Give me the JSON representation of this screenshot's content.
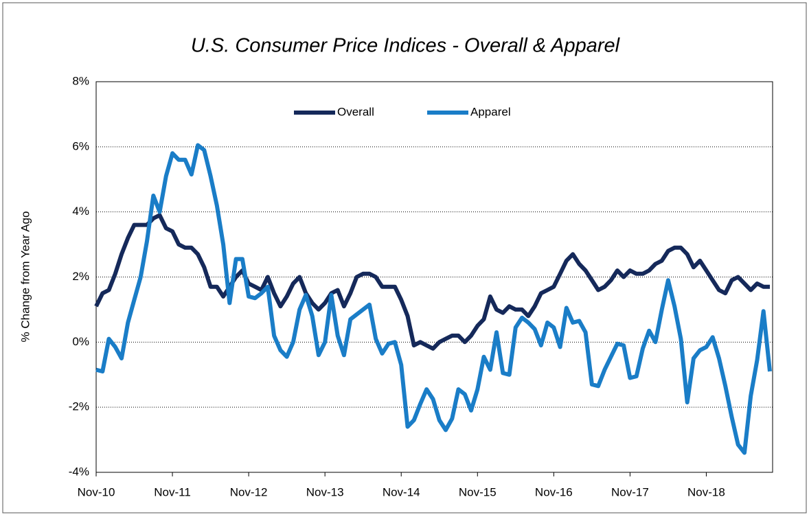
{
  "chart_data": {
    "type": "line",
    "title": "U.S. Consumer Price Indices - Overall & Apparel",
    "y_label": "% Change from Year Ago",
    "categories": [
      "Nov-10",
      null,
      null,
      null,
      null,
      null,
      null,
      null,
      null,
      null,
      null,
      null,
      "Nov-11",
      null,
      null,
      null,
      null,
      null,
      null,
      null,
      null,
      null,
      null,
      null,
      "Nov-12",
      null,
      null,
      null,
      null,
      null,
      null,
      null,
      null,
      null,
      null,
      null,
      "Nov-13",
      null,
      null,
      null,
      null,
      null,
      null,
      null,
      null,
      null,
      null,
      null,
      "Nov-14",
      null,
      null,
      null,
      null,
      null,
      null,
      null,
      null,
      null,
      null,
      null,
      "Nov-15",
      null,
      null,
      null,
      null,
      null,
      null,
      null,
      null,
      null,
      null,
      null,
      "Nov-16",
      null,
      null,
      null,
      null,
      null,
      null,
      null,
      null,
      null,
      null,
      null,
      "Nov-17",
      null,
      null,
      null,
      null,
      null,
      null,
      null,
      null,
      null,
      null,
      null,
      "Nov-18",
      null,
      null,
      null,
      null,
      null,
      null,
      null,
      null,
      null,
      null
    ],
    "series": [
      {
        "name": "Overall",
        "color": "#15295a",
        "values": [
          1.1,
          1.5,
          1.6,
          2.1,
          2.7,
          3.2,
          3.6,
          3.6,
          3.6,
          3.8,
          3.9,
          3.5,
          3.4,
          3.0,
          2.9,
          2.9,
          2.7,
          2.3,
          1.7,
          1.7,
          1.4,
          1.7,
          2.0,
          2.2,
          1.8,
          1.7,
          1.6,
          2.0,
          1.5,
          1.1,
          1.4,
          1.8,
          2.0,
          1.5,
          1.2,
          1.0,
          1.2,
          1.5,
          1.6,
          1.1,
          1.5,
          2.0,
          2.1,
          2.1,
          2.0,
          1.7,
          1.7,
          1.7,
          1.3,
          0.8,
          -0.1,
          0.0,
          -0.1,
          -0.2,
          0.0,
          0.1,
          0.2,
          0.2,
          0.0,
          0.2,
          0.5,
          0.7,
          1.4,
          1.0,
          0.9,
          1.1,
          1.0,
          1.0,
          0.8,
          1.1,
          1.5,
          1.6,
          1.7,
          2.1,
          2.5,
          2.7,
          2.4,
          2.2,
          1.9,
          1.6,
          1.7,
          1.9,
          2.2,
          2.0,
          2.2,
          2.1,
          2.1,
          2.2,
          2.4,
          2.5,
          2.8,
          2.9,
          2.9,
          2.7,
          2.3,
          2.5,
          2.2,
          1.9,
          1.6,
          1.5,
          1.9,
          2.0,
          1.8,
          1.6,
          1.8,
          1.7,
          1.7
        ]
      },
      {
        "name": "Apparel",
        "color": "#1a7dc7",
        "values": [
          -0.85,
          -0.9,
          0.1,
          -0.15,
          -0.5,
          0.6,
          1.3,
          2.0,
          3.1,
          4.5,
          4.0,
          5.1,
          5.8,
          5.6,
          5.6,
          5.15,
          6.05,
          5.9,
          5.1,
          4.2,
          3.0,
          1.2,
          2.55,
          2.55,
          1.4,
          1.35,
          1.5,
          1.7,
          0.2,
          -0.25,
          -0.45,
          0.0,
          1.0,
          1.45,
          0.8,
          -0.4,
          0.0,
          1.45,
          0.2,
          -0.4,
          0.7,
          0.85,
          1.0,
          1.15,
          0.1,
          -0.35,
          -0.05,
          0.0,
          -0.7,
          -2.6,
          -2.4,
          -1.9,
          -1.45,
          -1.75,
          -2.4,
          -2.7,
          -2.35,
          -1.45,
          -1.6,
          -2.1,
          -1.45,
          -0.45,
          -0.85,
          0.3,
          -0.95,
          -1.0,
          0.45,
          0.75,
          0.6,
          0.4,
          -0.1,
          0.6,
          0.45,
          -0.15,
          1.05,
          0.6,
          0.65,
          0.3,
          -1.3,
          -1.35,
          -0.85,
          -0.45,
          -0.05,
          -0.1,
          -1.1,
          -1.05,
          -0.2,
          0.35,
          0.0,
          1.0,
          1.9,
          1.1,
          0.1,
          -1.85,
          -0.5,
          -0.25,
          -0.15,
          0.15,
          -0.5,
          -1.35,
          -2.3,
          -3.15,
          -3.4,
          -1.65,
          -0.55,
          0.95,
          -0.9
        ]
      }
    ],
    "ylim": [
      -4,
      8
    ],
    "yticks": [
      {
        "value": -4,
        "label": "-4%"
      },
      {
        "value": -2,
        "label": "-2%"
      },
      {
        "value": 0,
        "label": "0%"
      },
      {
        "value": 2,
        "label": "2%"
      },
      {
        "value": 4,
        "label": "4%"
      },
      {
        "value": 6,
        "label": "6%"
      },
      {
        "value": 8,
        "label": "8%"
      }
    ],
    "grid": true,
    "legend": "top"
  }
}
